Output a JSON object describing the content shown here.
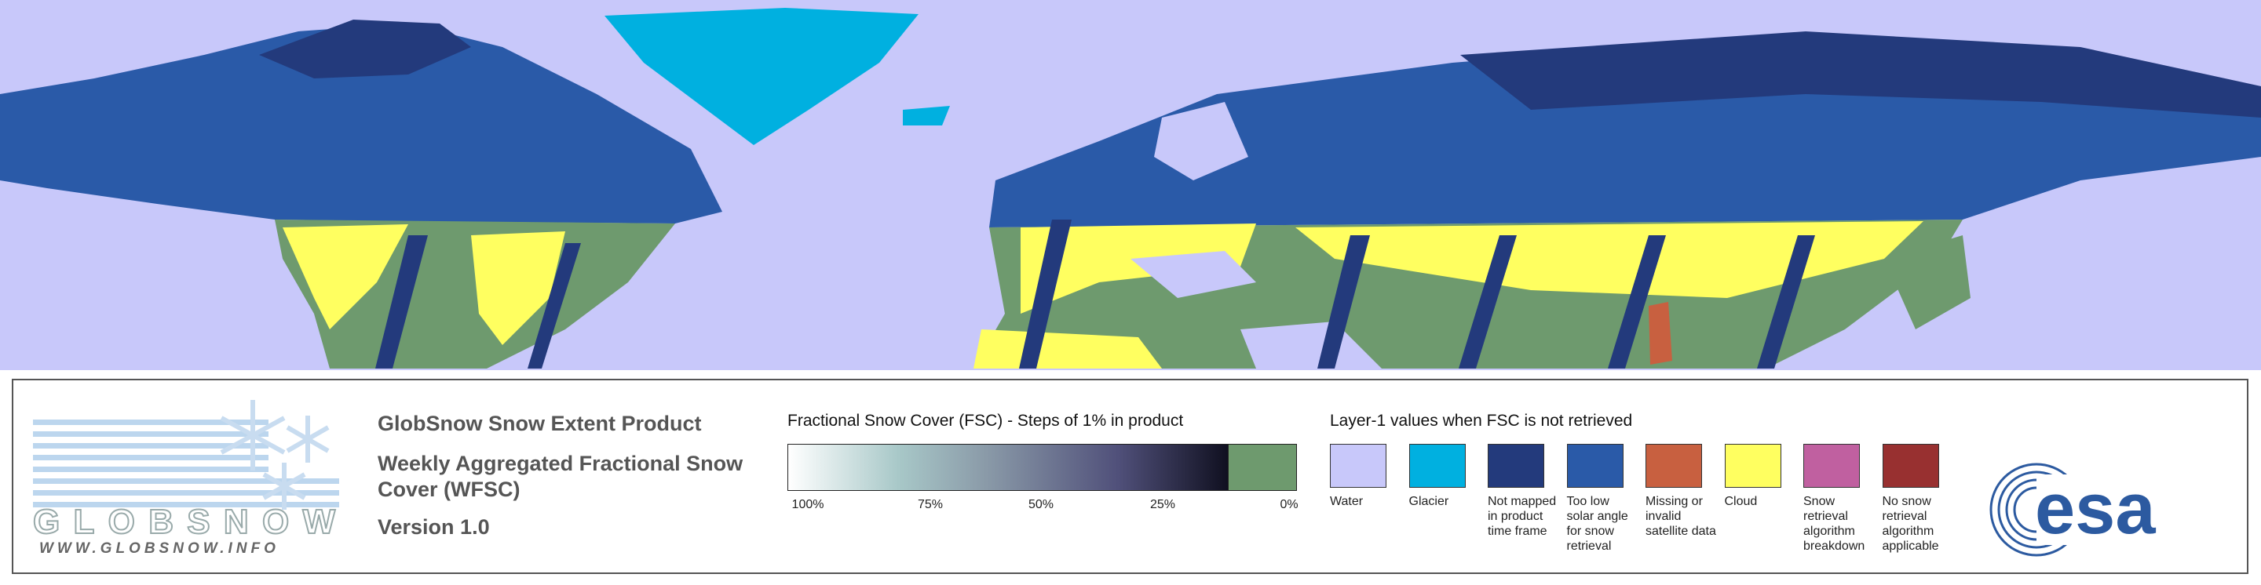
{
  "logo": {
    "name": "GLOBSNOW",
    "url": "WWW.GLOBSNOW.INFO"
  },
  "product": {
    "title": "GlobSnow Snow Extent Product",
    "subtitle": "Weekly Aggregated Fractional Snow Cover (WFSC)",
    "version": "Version 1.0"
  },
  "fsc_scale": {
    "title": "Fractional Snow Cover (FSC) - Steps of 1% in product",
    "labels": [
      "100%",
      "75%",
      "50%",
      "25%",
      "0%"
    ]
  },
  "layer1": {
    "title": "Layer-1 values when FSC is not retrieved",
    "items": [
      {
        "label": "Water",
        "color": "#c8c8fa"
      },
      {
        "label": "Glacier",
        "color": "#00b0e0"
      },
      {
        "label": "Not mapped in product time frame",
        "color": "#233a7c"
      },
      {
        "label": "Too low solar angle for snow retrieval",
        "color": "#2a5aa8"
      },
      {
        "label": "Missing or invalid satellite data",
        "color": "#c86040"
      },
      {
        "label": "Cloud",
        "color": "#ffff60"
      },
      {
        "label": "Snow retrieval algorithm breakdown",
        "color": "#c060a0"
      },
      {
        "label": "No snow retrieval algorithm applicable",
        "color": "#983030"
      }
    ]
  },
  "esa": "esa"
}
